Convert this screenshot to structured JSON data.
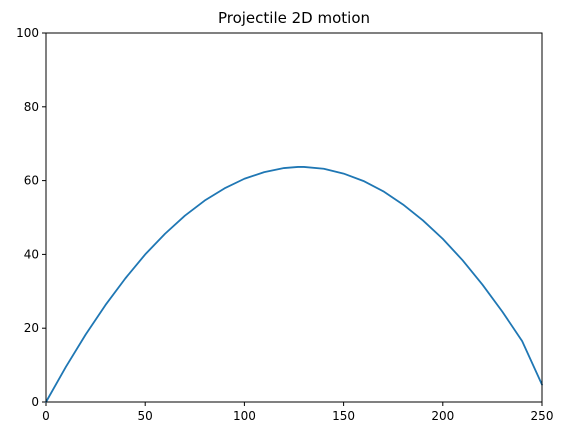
{
  "chart_data": {
    "type": "line",
    "title": "Projectile 2D motion",
    "xlabel": "",
    "ylabel": "",
    "xlim": [
      0,
      250
    ],
    "ylim": [
      0,
      100
    ],
    "xticks": [
      0,
      50,
      100,
      150,
      200,
      250
    ],
    "yticks": [
      0,
      20,
      40,
      60,
      80,
      100
    ],
    "grid": false,
    "legend": "none",
    "series": [
      {
        "color": "#1f77b4",
        "x": [
          0,
          10,
          20,
          30,
          40,
          50,
          60,
          70,
          80,
          90,
          100,
          110,
          120,
          127,
          130,
          140,
          150,
          160,
          170,
          180,
          190,
          200,
          210,
          220,
          230,
          240,
          250
        ],
        "y": [
          0,
          9.5,
          18.3,
          26.3,
          33.5,
          40.0,
          45.6,
          50.5,
          54.6,
          57.9,
          60.5,
          62.3,
          63.4,
          63.7,
          63.7,
          63.2,
          61.9,
          59.9,
          57.1,
          53.5,
          49.2,
          44.2,
          38.4,
          31.8,
          24.5,
          16.5,
          4.7
        ]
      }
    ]
  }
}
